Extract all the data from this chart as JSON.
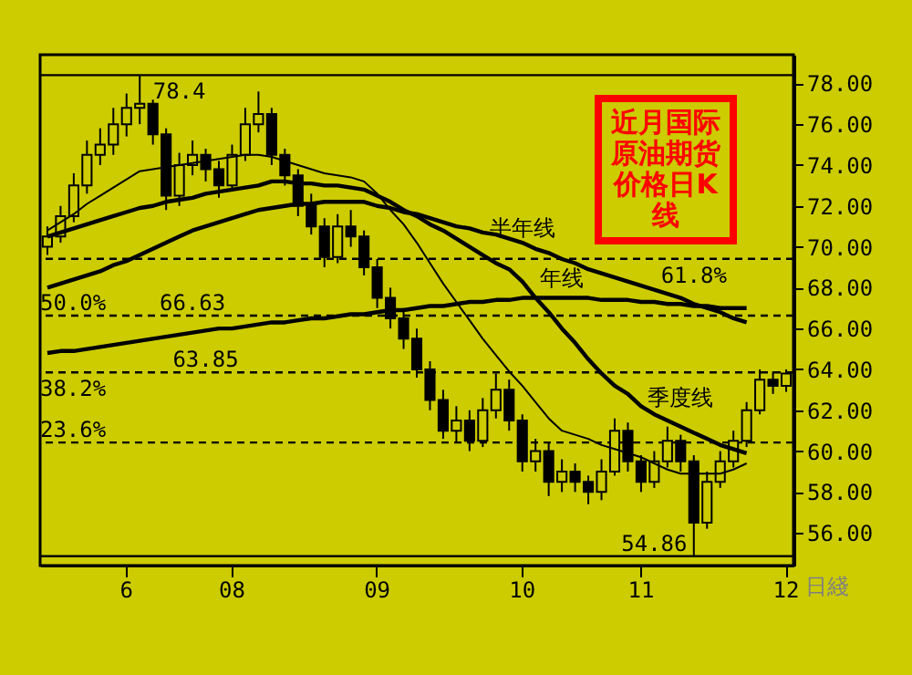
{
  "chart_data": {
    "type": "candlestick",
    "title": "近月国际原油期货价格日K线",
    "xlabel": "日綫",
    "categories": [
      null,
      null,
      null,
      null,
      null,
      null,
      "6",
      null,
      null,
      null,
      null,
      null,
      null,
      null,
      "08",
      null,
      null,
      null,
      null,
      null,
      null,
      null,
      null,
      null,
      null,
      "09",
      null,
      null,
      null,
      null,
      null,
      null,
      null,
      null,
      null,
      null,
      "10",
      null,
      null,
      null,
      null,
      null,
      null,
      null,
      null,
      "11",
      null,
      null,
      null,
      null,
      null,
      null,
      null,
      null,
      null,
      null,
      "12"
    ],
    "ohlc": [
      [
        70.0,
        71.0,
        69.6,
        70.5
      ],
      [
        70.5,
        72.0,
        70.2,
        71.5
      ],
      [
        71.5,
        73.6,
        71.2,
        73.0
      ],
      [
        73.0,
        75.2,
        72.6,
        74.5
      ],
      [
        74.5,
        75.8,
        74.0,
        75.0
      ],
      [
        75.0,
        76.8,
        74.5,
        76.0
      ],
      [
        76.0,
        77.5,
        75.4,
        76.8
      ],
      [
        76.8,
        78.4,
        76.0,
        77.0
      ],
      [
        77.0,
        77.2,
        75.0,
        75.5
      ],
      [
        75.5,
        75.8,
        71.8,
        72.5
      ],
      [
        72.5,
        74.6,
        72.0,
        74.0
      ],
      [
        74.0,
        75.2,
        73.5,
        74.5
      ],
      [
        74.5,
        74.8,
        73.2,
        73.8
      ],
      [
        73.8,
        74.2,
        72.4,
        73.0
      ],
      [
        73.0,
        75.0,
        72.8,
        74.5
      ],
      [
        74.5,
        76.8,
        74.2,
        76.0
      ],
      [
        76.0,
        77.6,
        75.6,
        76.5
      ],
      [
        76.5,
        76.8,
        74.0,
        74.5
      ],
      [
        74.5,
        74.8,
        73.0,
        73.5
      ],
      [
        73.5,
        73.8,
        71.5,
        72.0
      ],
      [
        72.0,
        72.6,
        70.6,
        71.0
      ],
      [
        71.0,
        71.4,
        69.0,
        69.5
      ],
      [
        69.5,
        71.6,
        69.2,
        71.0
      ],
      [
        71.0,
        71.8,
        70.0,
        70.5
      ],
      [
        70.5,
        70.8,
        68.6,
        69.0
      ],
      [
        69.0,
        69.4,
        67.0,
        67.5
      ],
      [
        67.5,
        68.0,
        66.0,
        66.5
      ],
      [
        66.5,
        67.0,
        65.0,
        65.5
      ],
      [
        65.5,
        66.0,
        63.6,
        64.0
      ],
      [
        64.0,
        64.4,
        62.0,
        62.5
      ],
      [
        62.5,
        63.0,
        60.6,
        61.0
      ],
      [
        61.0,
        62.2,
        60.4,
        61.5
      ],
      [
        61.5,
        62.0,
        60.0,
        60.5
      ],
      [
        60.5,
        62.6,
        60.2,
        62.0
      ],
      [
        62.0,
        63.8,
        61.6,
        63.0
      ],
      [
        63.0,
        63.5,
        61.0,
        61.5
      ],
      [
        61.5,
        61.8,
        59.0,
        59.5
      ],
      [
        59.5,
        60.6,
        59.0,
        60.0
      ],
      [
        60.0,
        60.4,
        57.8,
        58.5
      ],
      [
        58.5,
        59.6,
        58.0,
        59.0
      ],
      [
        59.0,
        59.4,
        58.0,
        58.5
      ],
      [
        58.5,
        58.8,
        57.4,
        58.0
      ],
      [
        58.0,
        59.6,
        57.6,
        59.0
      ],
      [
        59.0,
        61.6,
        58.8,
        61.0
      ],
      [
        61.0,
        61.4,
        59.0,
        59.5
      ],
      [
        59.5,
        59.8,
        58.0,
        58.5
      ],
      [
        58.5,
        60.0,
        58.2,
        59.5
      ],
      [
        59.5,
        61.2,
        59.2,
        60.5
      ],
      [
        60.5,
        60.8,
        59.0,
        59.5
      ],
      [
        59.5,
        59.8,
        54.86,
        56.5
      ],
      [
        56.5,
        59.0,
        56.2,
        58.5
      ],
      [
        58.5,
        60.0,
        58.2,
        59.5
      ],
      [
        59.5,
        61.0,
        59.2,
        60.5
      ],
      [
        60.5,
        62.4,
        60.2,
        62.0
      ],
      [
        62.0,
        64.0,
        61.8,
        63.5
      ],
      [
        63.5,
        63.9,
        62.8,
        63.2
      ],
      [
        63.2,
        64.0,
        62.9,
        63.8
      ]
    ],
    "series": [
      {
        "type": "line",
        "name": "季度线",
        "color": "#000000",
        "values": [
          70.5,
          70.7,
          70.9,
          71.1,
          71.3,
          71.5,
          71.7,
          71.9,
          72.0,
          72.2,
          72.3,
          72.4,
          72.6,
          72.7,
          72.8,
          72.9,
          73.0,
          73.2,
          73.2,
          73.1,
          73.1,
          73.0,
          73.0,
          72.9,
          72.8,
          72.5,
          72.2,
          71.8,
          71.5,
          71.1,
          70.8,
          70.4,
          70.0,
          69.6,
          69.2,
          68.9,
          68.3,
          67.5,
          66.8,
          66.0,
          65.3,
          64.5,
          63.8,
          63.2,
          62.8,
          62.2,
          61.8,
          61.5,
          61.2,
          60.9,
          60.6,
          60.3,
          60.1,
          59.9,
          null,
          null,
          null
        ]
      },
      {
        "type": "line",
        "name": "半年线",
        "color": "#000000",
        "values": [
          68.0,
          68.2,
          68.4,
          68.6,
          68.8,
          69.1,
          69.3,
          69.6,
          69.9,
          70.2,
          70.5,
          70.8,
          71.0,
          71.2,
          71.4,
          71.6,
          71.8,
          71.9,
          72.0,
          72.1,
          72.1,
          72.2,
          72.2,
          72.2,
          72.2,
          72.0,
          71.9,
          71.7,
          71.6,
          71.4,
          71.2,
          71.0,
          70.9,
          70.7,
          70.6,
          70.4,
          70.2,
          69.9,
          69.7,
          69.4,
          69.2,
          68.9,
          68.7,
          68.5,
          68.3,
          68.1,
          67.9,
          67.7,
          67.5,
          67.2,
          67.0,
          66.8,
          66.5,
          66.3,
          null,
          null,
          null
        ]
      },
      {
        "type": "line",
        "name": "年线",
        "color": "#000000",
        "values": [
          64.8,
          64.9,
          64.9,
          65.0,
          65.1,
          65.2,
          65.3,
          65.4,
          65.5,
          65.6,
          65.7,
          65.8,
          65.9,
          66.0,
          66.0,
          66.1,
          66.2,
          66.3,
          66.3,
          66.4,
          66.5,
          66.5,
          66.6,
          66.7,
          66.7,
          66.8,
          66.9,
          66.9,
          67.0,
          67.1,
          67.1,
          67.2,
          67.3,
          67.3,
          67.4,
          67.4,
          67.5,
          67.5,
          67.5,
          67.5,
          67.5,
          67.5,
          67.4,
          67.4,
          67.4,
          67.3,
          67.3,
          67.2,
          67.2,
          67.1,
          67.1,
          67.0,
          67.0,
          67.0,
          null,
          null,
          null
        ]
      },
      {
        "type": "line",
        "color": "#000000",
        "values": [
          70.8,
          71.2,
          71.6,
          72.1,
          72.5,
          72.9,
          73.3,
          73.7,
          73.8,
          73.9,
          74.0,
          74.1,
          74.2,
          74.3,
          74.4,
          74.5,
          74.5,
          74.4,
          74.2,
          74.0,
          73.8,
          73.6,
          73.5,
          73.4,
          73.2,
          72.6,
          71.8,
          71.1,
          70.2,
          69.2,
          68.2,
          67.3,
          66.4,
          65.5,
          64.7,
          63.9,
          63.2,
          62.4,
          61.6,
          61.0,
          60.8,
          60.6,
          60.3,
          60.1,
          59.9,
          59.7,
          59.4,
          59.1,
          58.9,
          58.9,
          58.9,
          58.9,
          59.1,
          59.4,
          null,
          null,
          null
        ]
      }
    ],
    "ylim": [
      54.4,
      79.4
    ],
    "yticks": [
      {
        "value": 56,
        "label": "56.00"
      },
      {
        "value": 58,
        "label": "58.00"
      },
      {
        "value": 60,
        "label": "60.00"
      },
      {
        "value": 62,
        "label": "62.00"
      },
      {
        "value": 64,
        "label": "64.00"
      },
      {
        "value": 66,
        "label": "66.00"
      },
      {
        "value": 68,
        "label": "68.00"
      },
      {
        "value": 70,
        "label": "70.00"
      },
      {
        "value": 72,
        "label": "72.00"
      },
      {
        "value": 74,
        "label": "74.00"
      },
      {
        "value": 76,
        "label": "76.00"
      },
      {
        "value": 78,
        "label": "78.00"
      }
    ],
    "ref_lines": [
      {
        "axis": "y",
        "value": 78.4,
        "label": "78.4",
        "line_style": "solid",
        "color": "#000000"
      },
      {
        "axis": "y",
        "value": 69.41,
        "line_style": "dashed",
        "color": "#000000"
      },
      {
        "axis": "y",
        "value": 66.63,
        "line_style": "dashed",
        "color": "#000000"
      },
      {
        "axis": "y",
        "value": 63.85,
        "line_style": "dashed",
        "color": "#000000"
      },
      {
        "axis": "y",
        "value": 60.42,
        "line_style": "dashed",
        "color": "#000000"
      },
      {
        "axis": "y",
        "value": 54.86,
        "label": "54.86",
        "line_style": "solid",
        "color": "#000000"
      }
    ],
    "annotations": [
      {
        "text": "61.8%",
        "y": 69.41
      },
      {
        "text": "50.0%",
        "y": 66.63
      },
      {
        "text": "66.63",
        "y": 66.63
      },
      {
        "text": "38.2%",
        "y": 63.85
      },
      {
        "text": "63.85",
        "y": 63.85
      },
      {
        "text": "23.6%",
        "y": 60.42
      }
    ],
    "grid": false,
    "legend": false
  }
}
